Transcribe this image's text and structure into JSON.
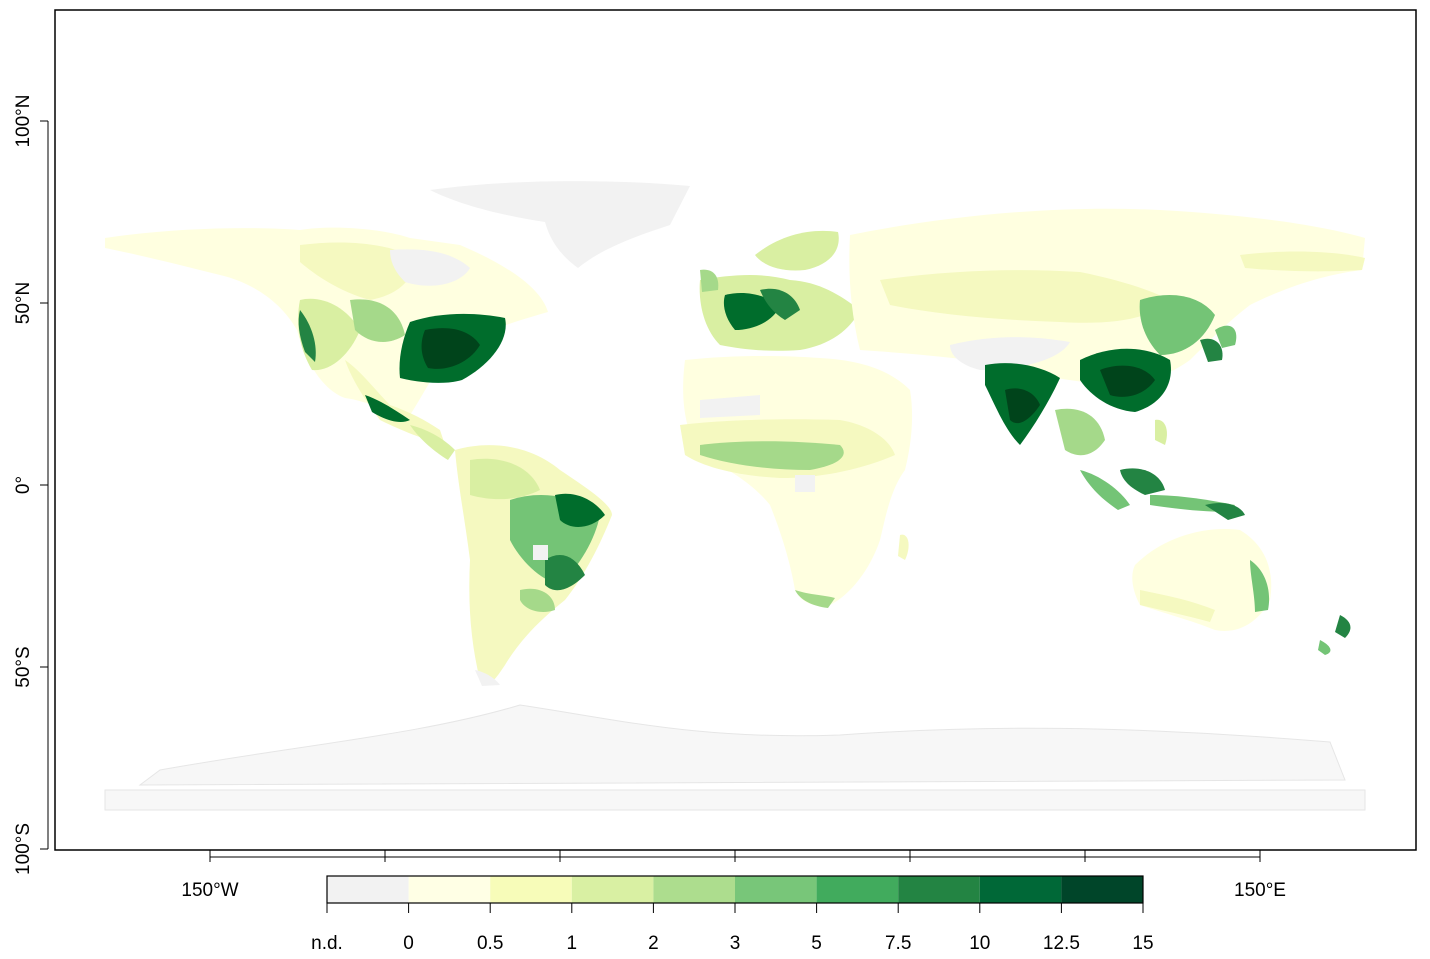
{
  "map": {
    "y_axis": {
      "ticks": [
        {
          "value": 100,
          "label": "100°N"
        },
        {
          "value": 50,
          "label": "50°N"
        },
        {
          "value": 0,
          "label": "0°"
        },
        {
          "value": -50,
          "label": "50°S"
        },
        {
          "value": -100,
          "label": "100°S"
        }
      ]
    },
    "x_axis": {
      "ticks": [
        {
          "value": -150,
          "label": "150°W"
        },
        {
          "value": -100,
          "label": ""
        },
        {
          "value": -50,
          "label": ""
        },
        {
          "value": 0,
          "label": ""
        },
        {
          "value": 50,
          "label": ""
        },
        {
          "value": 100,
          "label": ""
        },
        {
          "value": 150,
          "label": "150°E"
        }
      ]
    },
    "land_colors": {
      "no_data": "#f2f2f2",
      "very_low": "#ffffe0",
      "low": "#f5f9c0",
      "mid": "#d9efa2",
      "high": "#74c476",
      "very_high": "#006d2c",
      "max": "#00441b"
    }
  },
  "legend": {
    "title": "",
    "bins": [
      {
        "label": "n.d.",
        "color": "#f2f2f2"
      },
      {
        "label": "0",
        "color": "#ffffe5"
      },
      {
        "label": "0.5",
        "color": "#f7fcb9"
      },
      {
        "label": "1",
        "color": "#d9f0a3"
      },
      {
        "label": "2",
        "color": "#addd8e"
      },
      {
        "label": "3",
        "color": "#78c679"
      },
      {
        "label": "5",
        "color": "#41ab5d"
      },
      {
        "label": "7.5",
        "color": "#238443"
      },
      {
        "label": "10",
        "color": "#006837"
      },
      {
        "label": "12.5",
        "color": "#004529"
      }
    ],
    "end_label": "15"
  }
}
